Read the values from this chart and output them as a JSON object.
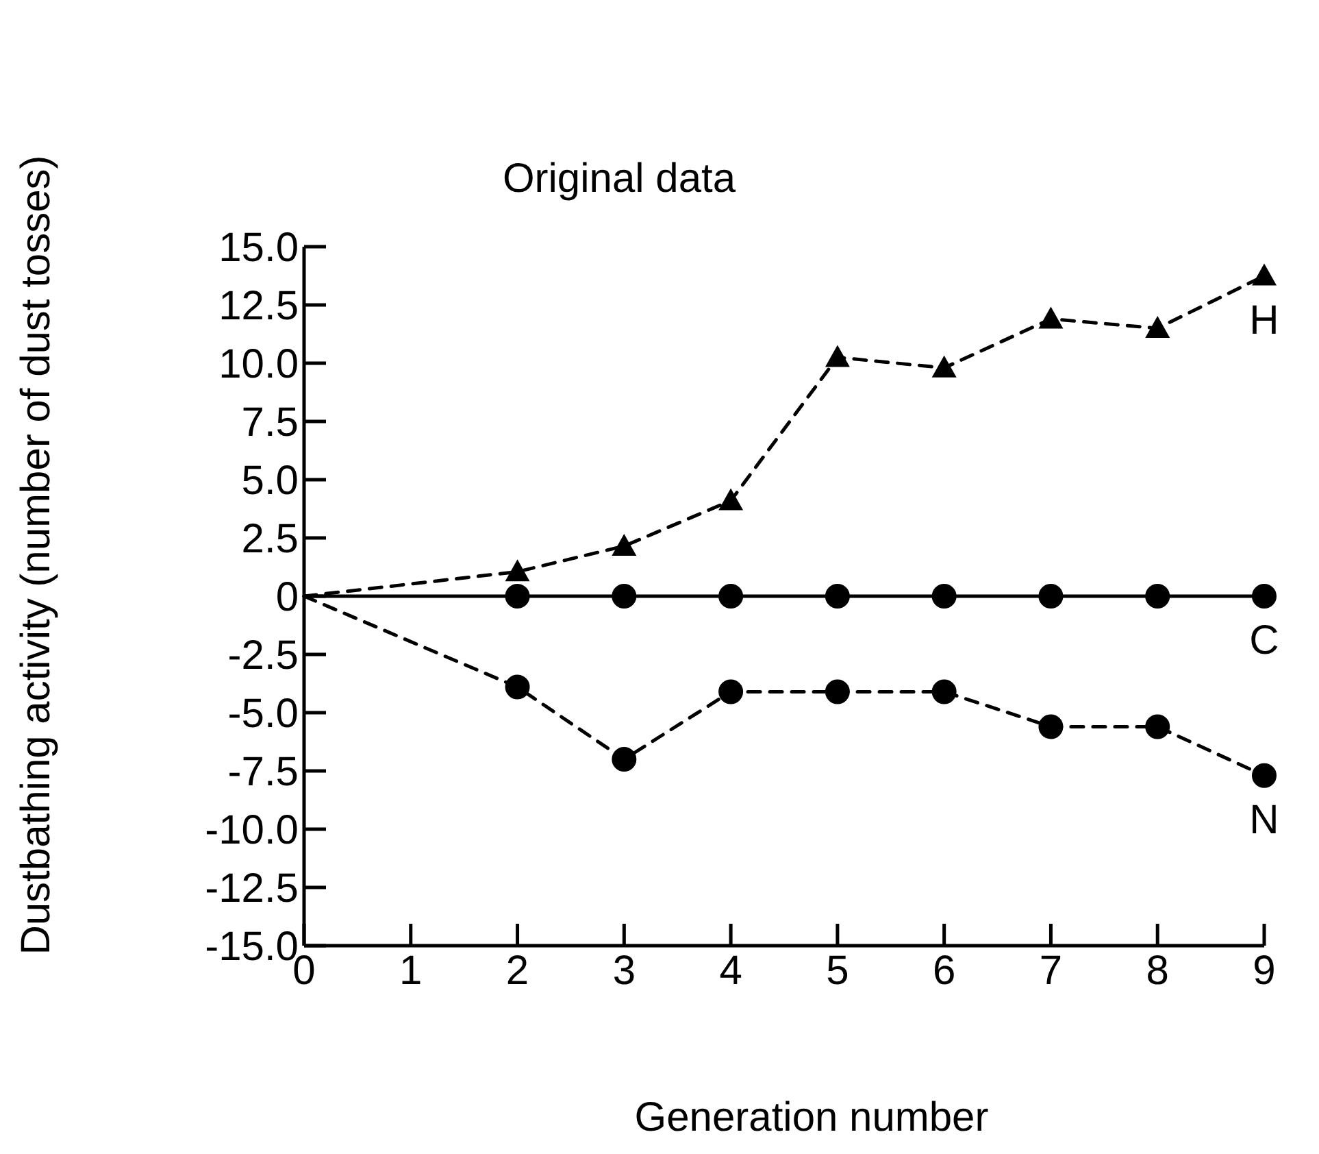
{
  "chart_data": {
    "type": "line",
    "title": "Original data",
    "xlabel": "Generation number",
    "ylabel": "Dustbathing activity (number of dust tosses)",
    "x": [
      0,
      2,
      3,
      4,
      5,
      6,
      7,
      8,
      9
    ],
    "series": [
      {
        "name": "H",
        "color": "#000000",
        "marker": "triangle",
        "line_style": "dashed",
        "values": [
          0,
          1.05,
          2.15,
          4.1,
          10.25,
          9.8,
          11.9,
          11.5,
          13.75
        ]
      },
      {
        "name": "C",
        "color": "#000000",
        "marker": "circle",
        "line_style": "solid",
        "values": [
          0,
          0,
          0,
          0,
          0,
          0,
          0,
          0,
          0
        ]
      },
      {
        "name": "N",
        "color": "#000000",
        "marker": "circle",
        "line_style": "dashed",
        "values": [
          0,
          -3.9,
          -7.0,
          -4.1,
          -4.1,
          -4.1,
          -5.6,
          -5.6,
          -7.7
        ]
      }
    ],
    "xlim": [
      0,
      9
    ],
    "xticks": [
      0,
      1,
      2,
      3,
      4,
      5,
      6,
      7,
      8,
      9
    ],
    "ylim": [
      -15,
      15
    ],
    "yticks": [
      {
        "value": 15,
        "label": "15.0"
      },
      {
        "value": 12.5,
        "label": "12.5"
      },
      {
        "value": 10,
        "label": "10.0"
      },
      {
        "value": 7.5,
        "label": "7.5"
      },
      {
        "value": 5,
        "label": "5.0"
      },
      {
        "value": 2.5,
        "label": "2.5"
      },
      {
        "value": 0,
        "label": "0"
      },
      {
        "value": -2.5,
        "label": "-2.5"
      },
      {
        "value": -5,
        "label": "-5.0"
      },
      {
        "value": -7.5,
        "label": "-7.5"
      },
      {
        "value": -10,
        "label": "-10.0"
      },
      {
        "value": -12.5,
        "label": "-12.5"
      },
      {
        "value": -15,
        "label": "-15.0"
      }
    ],
    "grid": false
  }
}
